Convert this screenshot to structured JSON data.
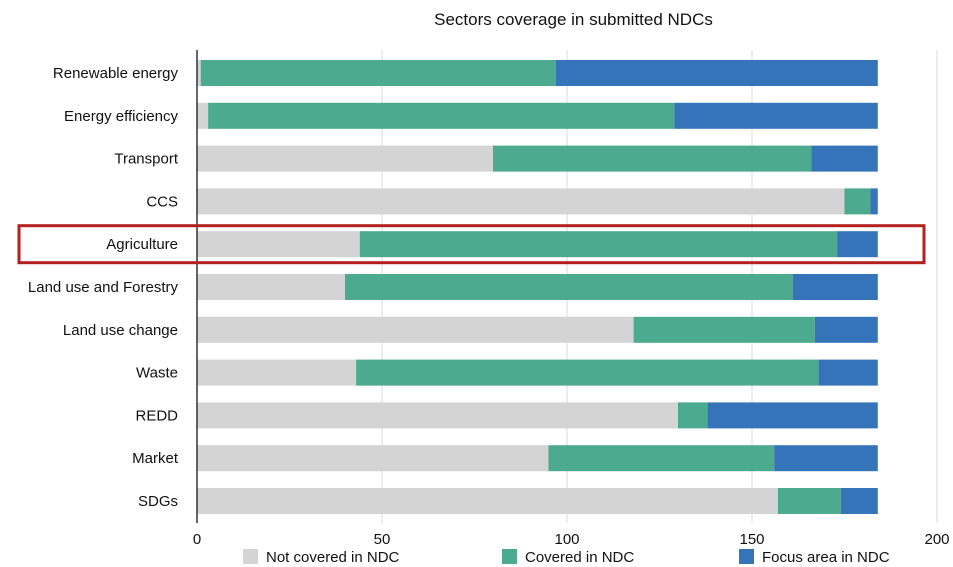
{
  "chart_data": {
    "type": "bar",
    "orientation": "horizontal",
    "stacked": true,
    "title": "Sectors coverage in submitted NDCs",
    "xlabel": "",
    "ylabel": "",
    "xlim": [
      0,
      200
    ],
    "x_ticks": [
      "0",
      "50",
      "100",
      "150",
      "200"
    ],
    "grid": true,
    "legend_position": "bottom",
    "categories": [
      "Renewable energy",
      "Energy efficiency",
      "Transport",
      "CCS",
      "Agriculture",
      "Land use and Forestry",
      "Land use change",
      "Waste",
      "REDD",
      "Market",
      "SDGs"
    ],
    "series": [
      {
        "name": "Not covered in NDC",
        "color": "#d4d4d4",
        "values": [
          1,
          3,
          80,
          175,
          44,
          40,
          118,
          43,
          130,
          95,
          157
        ]
      },
      {
        "name": "Covered in NDC",
        "color": "#4caa8e",
        "values": [
          96,
          126,
          86,
          7,
          129,
          121,
          49,
          125,
          8,
          61,
          17
        ]
      },
      {
        "name": "Focus area in NDC",
        "color": "#3674b9",
        "values": [
          87,
          55,
          18,
          2,
          11,
          23,
          17,
          16,
          46,
          28,
          10
        ]
      }
    ],
    "highlight": {
      "category": "Agriculture",
      "color": "#b41f1f"
    }
  }
}
